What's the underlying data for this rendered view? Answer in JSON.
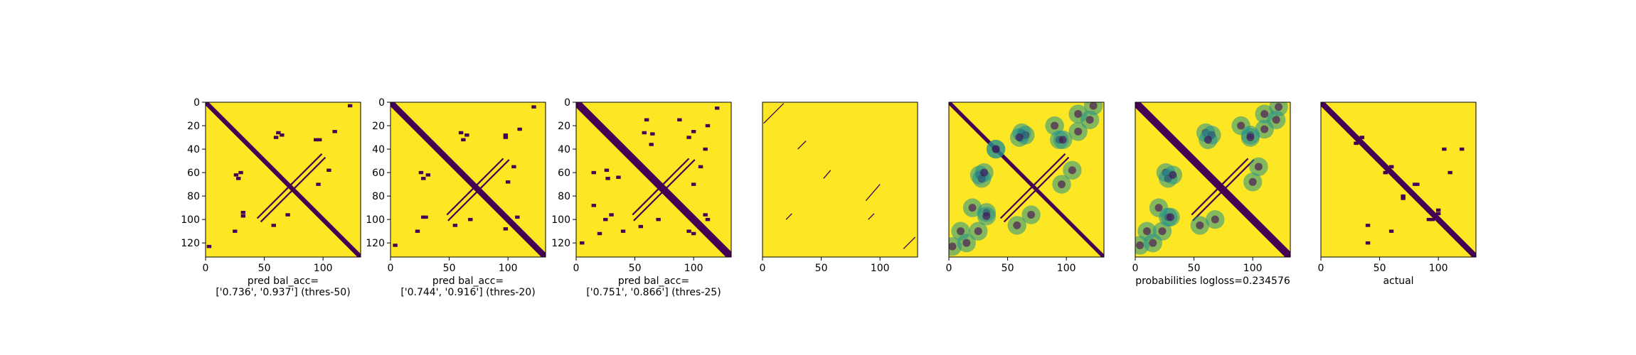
{
  "chart_data": [
    {
      "type": "heatmap",
      "panel": 1,
      "caption_lines": [
        "pred bal_acc=",
        "['0.736', '0.937'] (thres-50)"
      ],
      "xlim": [
        0,
        132
      ],
      "ylim": [
        132,
        0
      ],
      "xticks": [
        0,
        50,
        100
      ],
      "yticks": [
        0,
        20,
        40,
        60,
        80,
        100,
        120
      ],
      "colors": {
        "low": "#440154",
        "high": "#fde725"
      },
      "diagonal_bands": [
        [
          0,
          1.2
        ]
      ],
      "antidiagonal_pairs": [
        [
          83,
          96
        ],
        [
          86,
          99
        ]
      ],
      "blobs": [
        [
          62,
          26
        ],
        [
          28,
          65
        ],
        [
          32,
          94
        ],
        [
          25,
          110
        ],
        [
          70,
          96
        ],
        [
          97,
          32
        ],
        [
          105,
          58
        ],
        [
          123,
          3
        ],
        [
          60,
          30
        ]
      ]
    },
    {
      "type": "heatmap",
      "panel": 2,
      "caption_lines": [
        "pred bal_acc=",
        "['0.744', '0.916'] (thres-20)"
      ],
      "xlim": [
        0,
        132
      ],
      "ylim": [
        132,
        0
      ],
      "xticks": [
        0,
        50,
        100
      ],
      "yticks": [
        0,
        20,
        40,
        60,
        80,
        100,
        120
      ],
      "colors": {
        "low": "#440154",
        "high": "#fde725"
      },
      "diagonal_bands": [
        [
          0,
          1.6
        ]
      ],
      "antidiagonal_pairs": [
        [
          80,
          100
        ],
        [
          85,
          101
        ]
      ],
      "blobs": [
        [
          60,
          26
        ],
        [
          28,
          65
        ],
        [
          28,
          98
        ],
        [
          23,
          110
        ],
        [
          68,
          100
        ],
        [
          98,
          30
        ],
        [
          105,
          55
        ],
        [
          122,
          4
        ],
        [
          62,
          32
        ],
        [
          108,
          98
        ]
      ]
    },
    {
      "type": "heatmap",
      "panel": 3,
      "caption_lines": [
        "pred bal_acc=",
        "['0.751', '0.866'] (thres-25)"
      ],
      "xlim": [
        0,
        132
      ],
      "ylim": [
        132,
        0
      ],
      "xticks": [
        0,
        50,
        100
      ],
      "yticks": [
        0,
        20,
        40,
        60,
        80,
        100,
        120
      ],
      "colors": {
        "low": "#440154",
        "high": "#fde725"
      },
      "diagonal_bands": [
        [
          0,
          2.0
        ]
      ],
      "antidiagonal_pairs": [
        [
          80,
          100
        ],
        [
          85,
          101
        ]
      ],
      "blobs": [
        [
          58,
          26
        ],
        [
          27,
          65
        ],
        [
          25,
          100
        ],
        [
          20,
          112
        ],
        [
          70,
          100
        ],
        [
          96,
          30
        ],
        [
          106,
          55
        ],
        [
          120,
          5
        ],
        [
          64,
          36
        ],
        [
          110,
          96
        ],
        [
          88,
          15
        ],
        [
          40,
          110
        ],
        [
          15,
          60
        ],
        [
          100,
          112
        ]
      ]
    },
    {
      "type": "heatmap",
      "panel": 4,
      "caption_lines": [],
      "xlim": [
        0,
        132
      ],
      "ylim": [
        132,
        0
      ],
      "xticks": [
        0,
        50,
        100
      ],
      "yticks": [],
      "colors": {
        "low": "#440154",
        "high": "#fde725"
      },
      "diagonal_bands": [],
      "segments": [
        [
          1,
          18,
          18,
          1
        ],
        [
          30,
          40,
          37,
          33
        ],
        [
          52,
          65,
          58,
          58
        ],
        [
          100,
          70,
          88,
          84
        ],
        [
          95,
          95,
          90,
          100
        ],
        [
          20,
          100,
          25,
          95
        ],
        [
          120,
          125,
          130,
          115
        ]
      ],
      "blobs": []
    },
    {
      "type": "heatmap",
      "panel": 5,
      "caption_lines": [],
      "xlim": [
        0,
        132
      ],
      "ylim": [
        132,
        0
      ],
      "xticks": [
        0,
        50,
        100
      ],
      "yticks": [],
      "colors": {
        "low": "#440154",
        "mid": "#21918c",
        "high": "#fde725"
      },
      "diagonal_bands": [
        [
          0,
          1.0
        ]
      ],
      "antidiagonal_pairs": [
        [
          83,
          96
        ],
        [
          86,
          99
        ]
      ],
      "blobs": [
        [
          62,
          26
        ],
        [
          28,
          65
        ],
        [
          32,
          94
        ],
        [
          25,
          110
        ],
        [
          70,
          96
        ],
        [
          97,
          32
        ],
        [
          105,
          58
        ],
        [
          123,
          3
        ],
        [
          60,
          30
        ],
        [
          15,
          120
        ],
        [
          110,
          10
        ],
        [
          90,
          20
        ],
        [
          40,
          40
        ]
      ]
    },
    {
      "type": "heatmap",
      "panel": 6,
      "caption_lines": [
        "probabilities logloss=0.234576"
      ],
      "xlim": [
        0,
        132
      ],
      "ylim": [
        132,
        0
      ],
      "xticks": [
        0,
        50,
        100
      ],
      "yticks": [],
      "colors": {
        "low": "#440154",
        "mid": "#21918c",
        "high": "#fde725"
      },
      "diagonal_bands": [
        [
          0,
          2.0
        ]
      ],
      "antidiagonal_pairs": [
        [
          80,
          100
        ],
        [
          85,
          101
        ]
      ],
      "blobs": [
        [
          60,
          26
        ],
        [
          28,
          65
        ],
        [
          28,
          98
        ],
        [
          23,
          110
        ],
        [
          68,
          100
        ],
        [
          98,
          30
        ],
        [
          105,
          55
        ],
        [
          122,
          4
        ],
        [
          62,
          32
        ],
        [
          15,
          120
        ],
        [
          110,
          10
        ],
        [
          90,
          20
        ]
      ]
    },
    {
      "type": "heatmap",
      "panel": 7,
      "caption_lines": [
        "actual"
      ],
      "xlim": [
        0,
        132
      ],
      "ylim": [
        132,
        0
      ],
      "xticks": [
        0,
        50,
        100
      ],
      "yticks": [],
      "colors": {
        "low": "#440154",
        "high": "#fde725"
      },
      "diagonal_bands": [
        [
          0,
          1.5
        ]
      ],
      "antidiagonal_pairs": [],
      "blobs": [
        [
          5,
          5
        ],
        [
          10,
          10
        ],
        [
          25,
          25
        ],
        [
          30,
          35
        ],
        [
          35,
          30
        ],
        [
          50,
          50
        ],
        [
          55,
          60
        ],
        [
          60,
          55
        ],
        [
          75,
          75
        ],
        [
          80,
          70
        ],
        [
          70,
          82
        ],
        [
          90,
          90
        ],
        [
          95,
          100
        ],
        [
          100,
          92
        ],
        [
          110,
          110
        ],
        [
          125,
          125
        ],
        [
          60,
          110
        ],
        [
          40,
          120
        ],
        [
          105,
          40
        ]
      ]
    }
  ]
}
